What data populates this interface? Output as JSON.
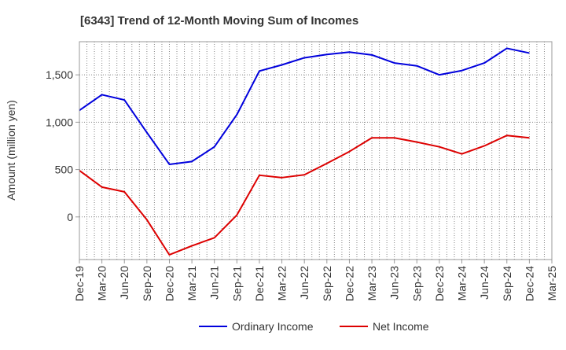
{
  "chart_data": {
    "type": "line",
    "title": "[6343]  Trend of 12-Month Moving Sum of Incomes",
    "ylabel": "Amount (million yen)",
    "xlabel": "",
    "ylim": [
      -450,
      1850
    ],
    "yticks": [
      0,
      500,
      1000,
      1500
    ],
    "ytick_labels": [
      "0",
      "500",
      "1,000",
      "1,500"
    ],
    "categories": [
      "Dec-19",
      "Mar-20",
      "Jun-20",
      "Sep-20",
      "Dec-20",
      "Mar-21",
      "Jun-21",
      "Sep-21",
      "Dec-21",
      "Mar-22",
      "Jun-22",
      "Sep-22",
      "Dec-22",
      "Mar-23",
      "Jun-23",
      "Sep-23",
      "Dec-23",
      "Mar-24",
      "Jun-24",
      "Sep-24",
      "Dec-24",
      "Mar-25"
    ],
    "grid": true,
    "legend_position": "bottom",
    "series": [
      {
        "name": "Ordinary Income",
        "color": "#0000dd",
        "values": [
          1125,
          1290,
          1235,
          890,
          555,
          585,
          740,
          1080,
          1540,
          1605,
          1680,
          1715,
          1740,
          1710,
          1625,
          1595,
          1500,
          1545,
          1625,
          1780,
          1730,
          null
        ]
      },
      {
        "name": "Net Income",
        "color": "#dd0000",
        "values": [
          490,
          315,
          265,
          -30,
          -400,
          -305,
          -220,
          20,
          440,
          415,
          445,
          565,
          690,
          835,
          835,
          790,
          740,
          665,
          750,
          860,
          835,
          null
        ]
      }
    ]
  }
}
